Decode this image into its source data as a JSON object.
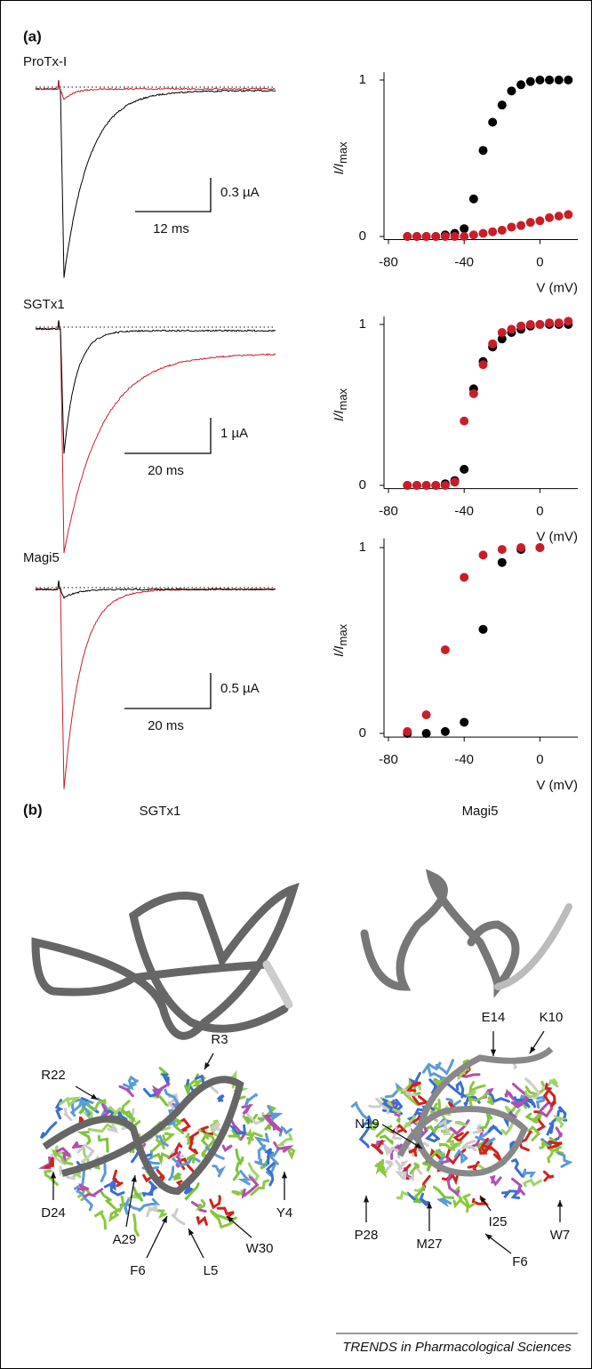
{
  "panel_labels": {
    "a": "(a)",
    "b": "(b)"
  },
  "traces": [
    {
      "toxin": "ProTx-I",
      "current_scale": "0.3 µA",
      "time_scale": "12 ms"
    },
    {
      "toxin": "SGTx1",
      "current_scale": "1 µA",
      "time_scale": "20 ms"
    },
    {
      "toxin": "Magi5",
      "current_scale": "0.5 µA",
      "time_scale": "20 ms"
    }
  ],
  "chart_data": [
    {
      "type": "scatter",
      "xlabel": "V (mV)",
      "ylabel": "I/I",
      "ylabel_sub": "max",
      "x": [
        -70,
        -65,
        -60,
        -55,
        -50,
        -45,
        -40,
        -35,
        -30,
        -25,
        -20,
        -15,
        -10,
        -5,
        0,
        5,
        10,
        15
      ],
      "series": [
        {
          "color": "#000000",
          "values": [
            0,
            0,
            0,
            0,
            0.01,
            0.02,
            0.05,
            0.24,
            0.55,
            0.73,
            0.84,
            0.93,
            0.97,
            0.99,
            1,
            1,
            1,
            1
          ]
        },
        {
          "color": "#c81e2a",
          "values": [
            0,
            0,
            0,
            0,
            0,
            0,
            0,
            0.01,
            0.02,
            0.03,
            0.04,
            0.06,
            0.07,
            0.09,
            0.1,
            0.12,
            0.13,
            0.14
          ]
        }
      ],
      "xlim": [
        -80,
        20
      ],
      "ylim": [
        -0.02,
        1.05
      ],
      "xticks": [
        -80,
        -40,
        0
      ],
      "yticks": [
        0,
        1
      ]
    },
    {
      "type": "scatter",
      "xlabel": "V (mV)",
      "ylabel": "I/I",
      "ylabel_sub": "max",
      "x": [
        -70,
        -65,
        -60,
        -55,
        -50,
        -45,
        -40,
        -35,
        -30,
        -25,
        -20,
        -15,
        -10,
        -5,
        0,
        5,
        10,
        15
      ],
      "series": [
        {
          "color": "#000000",
          "values": [
            0,
            0,
            0,
            0,
            0.01,
            0.03,
            0.1,
            0.6,
            0.77,
            0.86,
            0.91,
            0.95,
            0.97,
            0.99,
            1,
            1,
            1,
            1
          ]
        },
        {
          "color": "#c81e2a",
          "values": [
            0,
            0,
            0,
            0,
            0,
            0.02,
            0.4,
            0.57,
            0.75,
            0.88,
            0.95,
            0.97,
            0.99,
            1,
            1,
            1.01,
            1.01,
            1.02
          ]
        }
      ],
      "xlim": [
        -80,
        20
      ],
      "ylim": [
        -0.02,
        1.05
      ],
      "xticks": [
        -80,
        -40,
        0
      ],
      "yticks": [
        0,
        1
      ]
    },
    {
      "type": "scatter",
      "xlabel": "V (mV)",
      "ylabel": "I/I",
      "ylabel_sub": "max",
      "x": [
        -70,
        -60,
        -50,
        -40,
        -30,
        -20,
        -10,
        0
      ],
      "series": [
        {
          "color": "#000000",
          "values": [
            0,
            0,
            0.01,
            0.06,
            0.56,
            0.92,
            0.99,
            1
          ]
        },
        {
          "color": "#c81e2a",
          "values": [
            0.01,
            0.1,
            0.45,
            0.84,
            0.96,
            0.99,
            1,
            1
          ]
        }
      ],
      "xlim": [
        -80,
        20
      ],
      "ylim": [
        -0.02,
        1.05
      ],
      "xticks": [
        -80,
        -40,
        0
      ],
      "yticks": [
        0,
        1
      ]
    }
  ],
  "structures": [
    {
      "name": "SGTx1",
      "residues": [
        "R22",
        "R3",
        "D24",
        "A29",
        "F6",
        "L5",
        "W30",
        "Y4"
      ]
    },
    {
      "name": "Magi5",
      "residues": [
        "E14",
        "K10",
        "N19",
        "P28",
        "M27",
        "F6",
        "I25",
        "W7"
      ]
    }
  ],
  "footer": "TRENDS in Pharmacological Sciences"
}
